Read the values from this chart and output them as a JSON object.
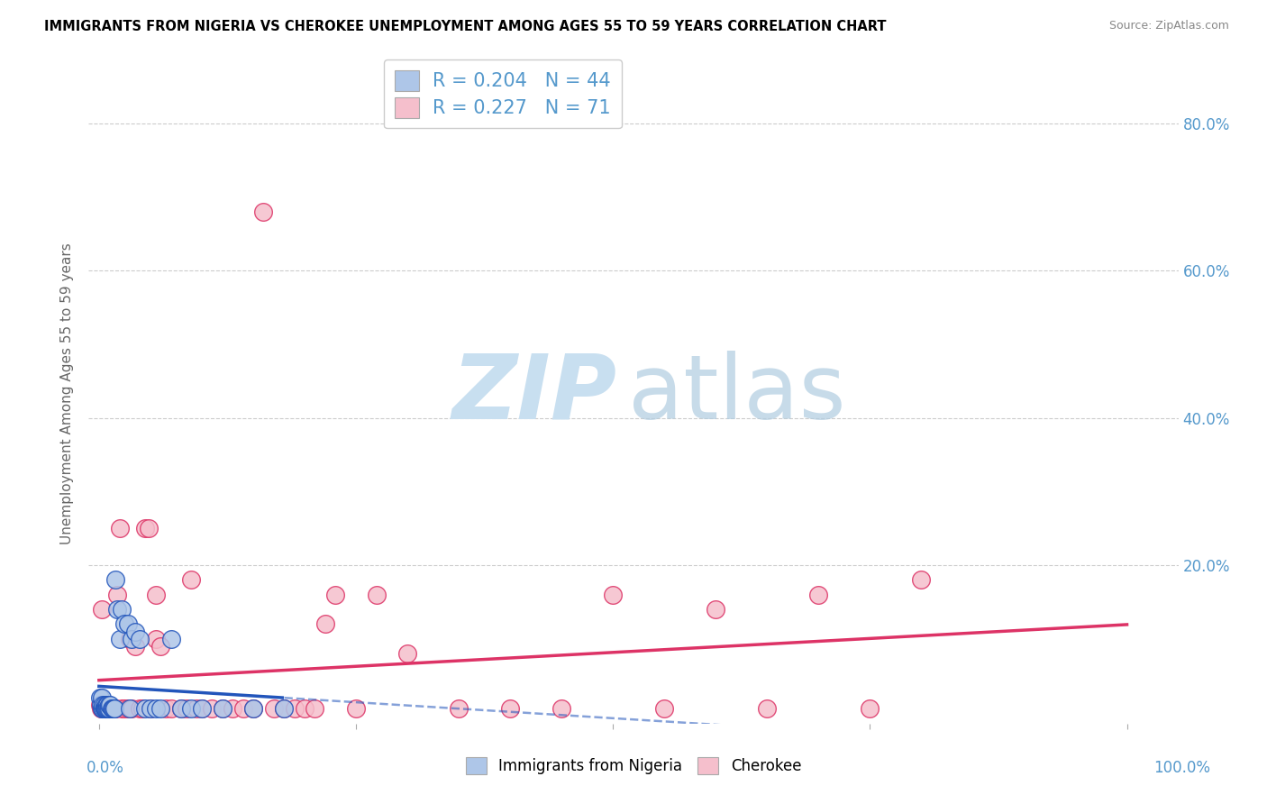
{
  "title": "IMMIGRANTS FROM NIGERIA VS CHEROKEE UNEMPLOYMENT AMONG AGES 55 TO 59 YEARS CORRELATION CHART",
  "source": "Source: ZipAtlas.com",
  "ylabel": "Unemployment Among Ages 55 to 59 years",
  "legend_label1": "Immigrants from Nigeria",
  "legend_label2": "Cherokee",
  "R1": 0.204,
  "N1": 44,
  "R2": 0.227,
  "N2": 71,
  "color_nigeria": "#aec6e8",
  "color_cherokee": "#f5bfcc",
  "color_line_nigeria": "#2255bb",
  "color_line_cherokee": "#dd3366",
  "nigeria_x": [
    0.1,
    0.2,
    0.3,
    0.3,
    0.4,
    0.4,
    0.5,
    0.5,
    0.5,
    0.6,
    0.6,
    0.7,
    0.7,
    0.8,
    0.8,
    0.9,
    1.0,
    1.0,
    1.1,
    1.2,
    1.3,
    1.4,
    1.5,
    1.6,
    1.8,
    2.0,
    2.2,
    2.5,
    2.8,
    3.0,
    3.2,
    3.5,
    4.0,
    4.5,
    5.0,
    5.5,
    6.0,
    7.0,
    8.0,
    9.0,
    10.0,
    12.0,
    15.0,
    18.0
  ],
  "nigeria_y": [
    2.0,
    1.0,
    2.0,
    0.5,
    0.5,
    1.0,
    0.5,
    1.0,
    0.5,
    0.5,
    0.5,
    1.0,
    0.5,
    1.0,
    0.5,
    0.5,
    0.5,
    1.0,
    1.0,
    0.5,
    0.5,
    0.5,
    0.5,
    18.0,
    14.0,
    10.0,
    14.0,
    12.0,
    12.0,
    0.5,
    10.0,
    11.0,
    10.0,
    0.5,
    0.5,
    0.5,
    0.5,
    10.0,
    0.5,
    0.5,
    0.5,
    0.5,
    0.5,
    0.5
  ],
  "cherokee_x": [
    0.1,
    0.2,
    0.2,
    0.3,
    0.3,
    0.4,
    0.4,
    0.5,
    0.5,
    0.6,
    0.6,
    0.7,
    0.7,
    0.8,
    0.8,
    0.9,
    1.0,
    1.0,
    1.2,
    1.3,
    1.5,
    1.6,
    1.8,
    2.0,
    2.2,
    2.5,
    2.8,
    3.0,
    3.2,
    3.5,
    4.0,
    4.2,
    4.5,
    4.8,
    5.0,
    5.5,
    5.5,
    6.0,
    6.5,
    7.0,
    8.0,
    8.5,
    9.0,
    9.5,
    10.0,
    11.0,
    12.0,
    13.0,
    14.0,
    15.0,
    16.0,
    17.0,
    18.0,
    19.0,
    20.0,
    21.0,
    22.0,
    23.0,
    25.0,
    27.0,
    30.0,
    35.0,
    40.0,
    45.0,
    50.0,
    55.0,
    60.0,
    65.0,
    70.0,
    75.0,
    80.0
  ],
  "cherokee_y": [
    1.0,
    0.5,
    1.0,
    0.5,
    14.0,
    0.5,
    1.0,
    0.5,
    0.5,
    0.5,
    0.5,
    0.5,
    0.5,
    0.5,
    0.5,
    0.5,
    0.5,
    0.5,
    0.5,
    0.5,
    0.5,
    0.5,
    16.0,
    25.0,
    0.5,
    0.5,
    0.5,
    10.0,
    0.5,
    9.0,
    0.5,
    0.5,
    25.0,
    25.0,
    0.5,
    16.0,
    10.0,
    9.0,
    0.5,
    0.5,
    0.5,
    0.5,
    18.0,
    0.5,
    0.5,
    0.5,
    0.5,
    0.5,
    0.5,
    0.5,
    68.0,
    0.5,
    0.5,
    0.5,
    0.5,
    0.5,
    12.0,
    16.0,
    0.5,
    16.0,
    8.0,
    0.5,
    0.5,
    0.5,
    16.0,
    0.5,
    14.0,
    0.5,
    16.0,
    0.5,
    18.0
  ],
  "xlim": [
    -1.0,
    105.0
  ],
  "ylim": [
    -1.5,
    88.0
  ],
  "yticks": [
    0,
    20,
    40,
    60,
    80
  ],
  "ytick_labels_right": [
    "",
    "20.0%",
    "40.0%",
    "60.0%",
    "80.0%"
  ],
  "grid_color": "#cccccc",
  "title_fontsize": 10.5,
  "axis_label_color": "#5599cc"
}
